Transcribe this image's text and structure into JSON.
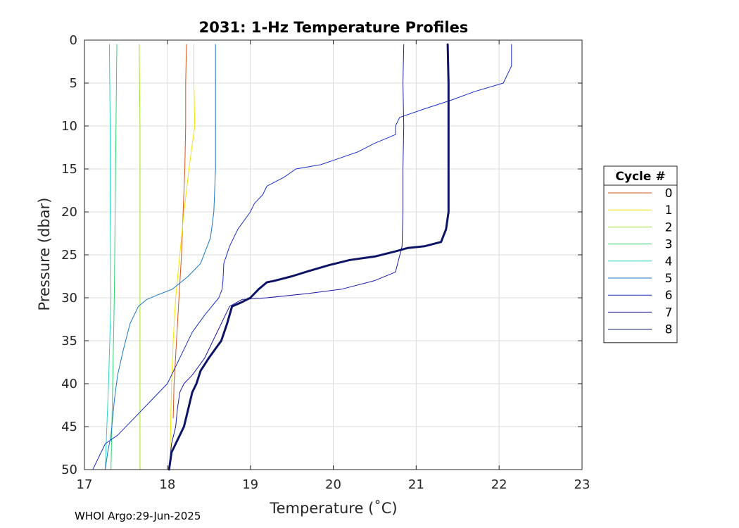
{
  "chart_data": {
    "type": "line",
    "title": "2031: 1-Hz Temperature Profiles",
    "xlabel": "Temperature (˚C)",
    "ylabel": "Pressure (dbar)",
    "xlim": [
      17,
      23
    ],
    "ylim": [
      0,
      50
    ],
    "y_reversed": true,
    "grid": true,
    "x_ticks": [
      17,
      18,
      19,
      20,
      21,
      22,
      23
    ],
    "y_ticks": [
      0,
      5,
      10,
      15,
      20,
      25,
      30,
      35,
      40,
      45,
      50
    ],
    "legend": {
      "title": "Cycle #",
      "placement": "right-outside"
    },
    "series": [
      {
        "name": "0",
        "color": "#d95319",
        "width": 1,
        "points": [
          [
            18.23,
            0.5
          ],
          [
            18.22,
            5
          ],
          [
            18.22,
            10
          ],
          [
            18.21,
            15
          ],
          [
            18.19,
            20
          ],
          [
            18.17,
            25
          ],
          [
            18.14,
            30
          ],
          [
            18.11,
            35
          ],
          [
            18.08,
            40
          ],
          [
            18.07,
            44
          ]
        ]
      },
      {
        "name": "1",
        "color": "#f4e400",
        "width": 1,
        "points": [
          [
            18.32,
            0.5
          ],
          [
            18.32,
            5
          ],
          [
            18.33,
            10
          ],
          [
            18.26,
            15
          ],
          [
            18.2,
            20
          ],
          [
            18.15,
            25
          ],
          [
            18.1,
            30
          ],
          [
            18.07,
            35
          ],
          [
            18.05,
            40
          ],
          [
            18.04,
            45
          ],
          [
            18.03,
            50
          ]
        ]
      },
      {
        "name": "2",
        "color": "#9ee02e",
        "width": 1,
        "points": [
          [
            17.66,
            0.5
          ],
          [
            17.67,
            10
          ],
          [
            17.67,
            20
          ],
          [
            17.67,
            30
          ],
          [
            17.67,
            40
          ],
          [
            17.67,
            50
          ]
        ]
      },
      {
        "name": "3",
        "color": "#2ed66d",
        "width": 1,
        "points": [
          [
            17.39,
            0.5
          ],
          [
            17.38,
            10
          ],
          [
            17.37,
            20
          ],
          [
            17.36,
            30
          ],
          [
            17.34,
            40
          ],
          [
            17.33,
            45
          ],
          [
            17.32,
            50
          ]
        ]
      },
      {
        "name": "4",
        "color": "#28d6c8",
        "width": 1,
        "points": [
          [
            17.3,
            0.5
          ],
          [
            17.31,
            10
          ],
          [
            17.31,
            20
          ],
          [
            17.32,
            30
          ],
          [
            17.29,
            40
          ],
          [
            17.27,
            45
          ],
          [
            17.25,
            50
          ]
        ]
      },
      {
        "name": "5",
        "color": "#1a76c8",
        "width": 1,
        "points": [
          [
            18.58,
            0.5
          ],
          [
            18.58,
            5
          ],
          [
            18.58,
            10
          ],
          [
            18.58,
            15
          ],
          [
            18.56,
            20
          ],
          [
            18.52,
            23
          ],
          [
            18.4,
            26
          ],
          [
            18.25,
            27.5
          ],
          [
            18.06,
            29
          ],
          [
            17.9,
            29.6
          ],
          [
            17.75,
            30.2
          ],
          [
            17.65,
            31
          ],
          [
            17.55,
            33
          ],
          [
            17.47,
            36
          ],
          [
            17.4,
            39
          ],
          [
            17.36,
            42
          ],
          [
            17.32,
            46
          ],
          [
            17.28,
            48
          ],
          [
            17.25,
            50
          ]
        ]
      },
      {
        "name": "6",
        "color": "#1a2fc8",
        "width": 1,
        "points": [
          [
            22.15,
            0.5
          ],
          [
            22.15,
            3
          ],
          [
            22.05,
            5
          ],
          [
            21.7,
            6
          ],
          [
            21.42,
            7
          ],
          [
            21.1,
            8
          ],
          [
            20.8,
            9
          ],
          [
            20.75,
            10
          ],
          [
            20.75,
            11
          ],
          [
            20.5,
            12
          ],
          [
            20.3,
            13
          ],
          [
            20.0,
            14
          ],
          [
            19.85,
            14.5
          ],
          [
            19.55,
            15
          ],
          [
            19.4,
            16
          ],
          [
            19.2,
            17
          ],
          [
            19.15,
            18
          ],
          [
            19.05,
            19
          ],
          [
            19.0,
            20
          ],
          [
            18.85,
            22
          ],
          [
            18.75,
            24
          ],
          [
            18.68,
            26
          ],
          [
            18.67,
            28
          ],
          [
            18.66,
            29
          ],
          [
            18.62,
            30
          ],
          [
            18.45,
            32
          ],
          [
            18.3,
            34
          ],
          [
            18.2,
            36
          ],
          [
            18.1,
            38
          ],
          [
            18.0,
            40
          ],
          [
            17.8,
            42
          ],
          [
            17.6,
            44
          ],
          [
            17.4,
            46
          ],
          [
            17.25,
            47
          ],
          [
            17.1,
            50
          ]
        ]
      },
      {
        "name": "7",
        "color": "#1a1aa8",
        "width": 1,
        "points": [
          [
            20.85,
            0.5
          ],
          [
            20.84,
            5
          ],
          [
            20.85,
            10
          ],
          [
            20.84,
            15
          ],
          [
            20.84,
            20
          ],
          [
            20.83,
            24
          ],
          [
            20.75,
            27
          ],
          [
            20.5,
            28
          ],
          [
            20.1,
            29
          ],
          [
            19.7,
            29.5
          ],
          [
            19.2,
            30
          ],
          [
            18.9,
            30.2
          ],
          [
            18.75,
            31
          ],
          [
            18.65,
            33
          ],
          [
            18.55,
            35
          ],
          [
            18.45,
            37
          ],
          [
            18.3,
            39
          ],
          [
            18.2,
            40
          ],
          [
            18.15,
            41
          ],
          [
            18.12,
            43
          ],
          [
            18.1,
            45
          ],
          [
            18.05,
            47
          ],
          [
            18.02,
            50
          ]
        ]
      },
      {
        "name": "8",
        "color": "#0d1466",
        "width": 3,
        "points": [
          [
            21.38,
            0.5
          ],
          [
            21.39,
            5
          ],
          [
            21.39,
            10
          ],
          [
            21.39,
            15
          ],
          [
            21.39,
            20
          ],
          [
            21.36,
            22
          ],
          [
            21.3,
            23.5
          ],
          [
            21.1,
            24
          ],
          [
            20.9,
            24.2
          ],
          [
            20.75,
            24.6
          ],
          [
            20.5,
            25.2
          ],
          [
            20.2,
            25.6
          ],
          [
            19.95,
            26.2
          ],
          [
            19.7,
            26.9
          ],
          [
            19.5,
            27.5
          ],
          [
            19.3,
            28
          ],
          [
            19.2,
            28.2
          ],
          [
            19.1,
            29
          ],
          [
            19.0,
            30
          ],
          [
            18.9,
            30.5
          ],
          [
            18.78,
            31
          ],
          [
            18.72,
            33
          ],
          [
            18.65,
            35
          ],
          [
            18.5,
            37
          ],
          [
            18.4,
            38.5
          ],
          [
            18.35,
            40
          ],
          [
            18.3,
            41
          ],
          [
            18.25,
            43
          ],
          [
            18.2,
            45
          ],
          [
            18.15,
            46
          ],
          [
            18.1,
            47
          ],
          [
            18.05,
            48
          ],
          [
            18.02,
            50
          ]
        ]
      }
    ]
  },
  "footer": {
    "text": "WHOI Argo:29-Jun-2025"
  }
}
